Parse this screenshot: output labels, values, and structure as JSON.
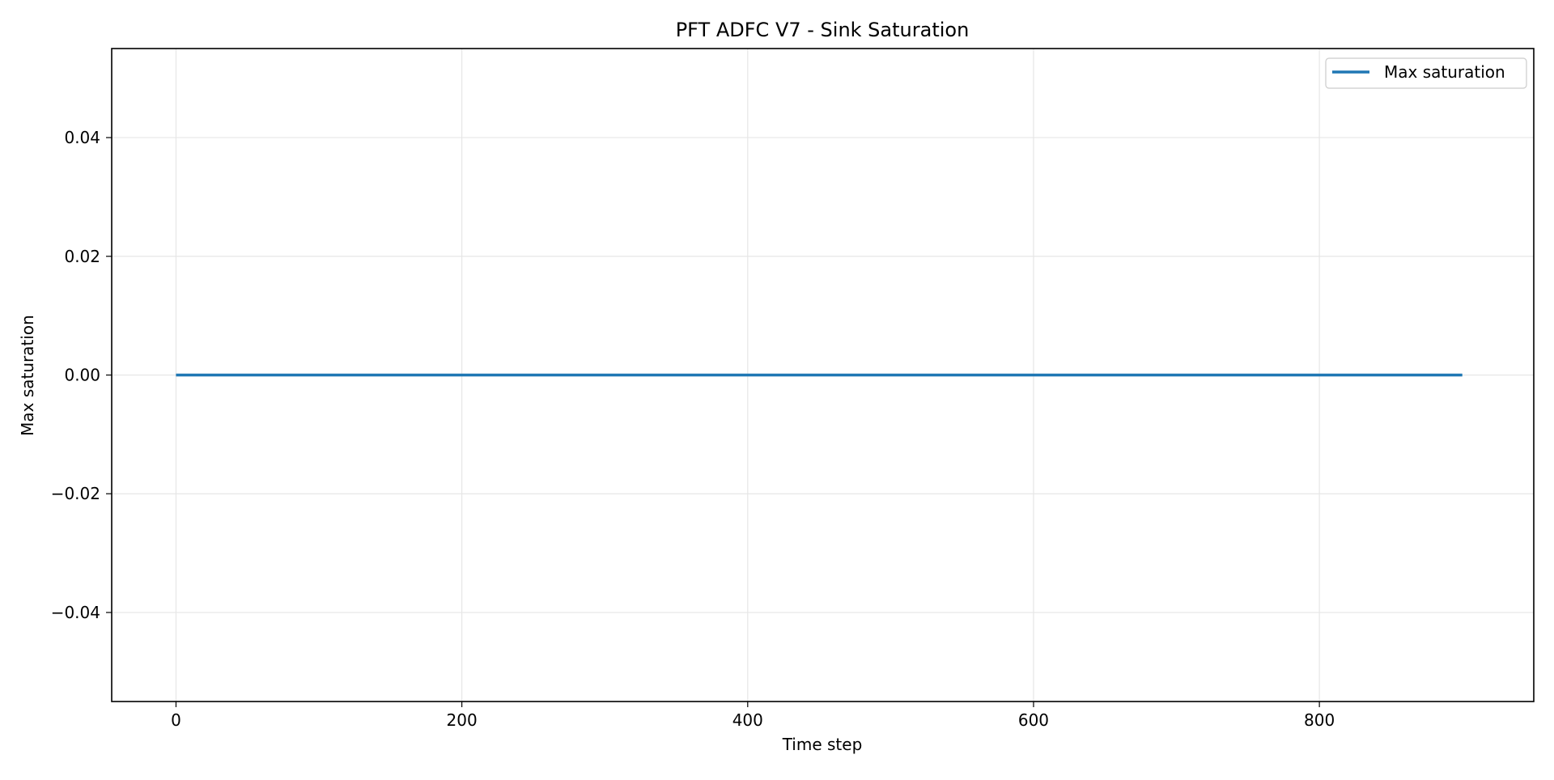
{
  "chart_data": {
    "type": "line",
    "title": "PFT ADFC V7 - Sink Saturation",
    "xlabel": "Time step",
    "ylabel": "Max saturation",
    "xlim": [
      -45,
      950
    ],
    "ylim": [
      -0.055,
      0.055
    ],
    "x_ticks": [
      0,
      200,
      400,
      600,
      800
    ],
    "x_tick_labels": [
      "0",
      "200",
      "400",
      "600",
      "800"
    ],
    "y_ticks": [
      0.04,
      0.02,
      0.0,
      -0.02,
      -0.04
    ],
    "y_tick_labels": [
      "0.04",
      "0.02",
      "0.00",
      "−0.02",
      "−0.04"
    ],
    "grid": true,
    "legend_position": "top-right",
    "series": [
      {
        "name": "Max saturation",
        "color": "#1f77b4",
        "x": [
          0,
          100,
          200,
          300,
          400,
          500,
          600,
          700,
          800,
          900
        ],
        "y": [
          0,
          0,
          0,
          0,
          0,
          0,
          0,
          0,
          0,
          0
        ]
      }
    ]
  }
}
